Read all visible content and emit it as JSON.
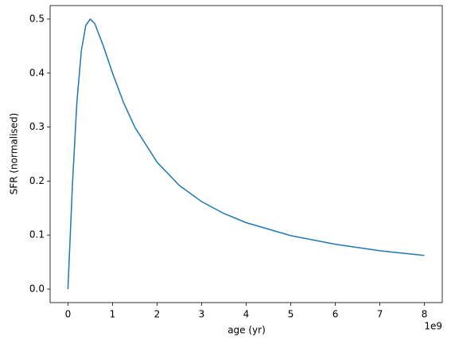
{
  "chart_data": {
    "type": "line",
    "x_label": "age (yr)",
    "y_label": "SFR (normalised)",
    "x_offset_text": "1e9",
    "x": [
      0,
      0.1,
      0.2,
      0.3,
      0.4,
      0.5,
      0.6,
      0.8,
      1,
      1.25,
      1.5,
      2,
      2.5,
      3,
      3.5,
      4,
      5,
      6,
      7,
      8
    ],
    "series": [
      {
        "color": "#1f77b4",
        "values": [
          0,
          0.192,
          0.345,
          0.441,
          0.488,
          0.5,
          0.492,
          0.449,
          0.4,
          0.345,
          0.3,
          0.235,
          0.192,
          0.162,
          0.14,
          0.123,
          0.099,
          0.083,
          0.071,
          0.0623
        ]
      }
    ],
    "xlim": [
      -0.4,
      8.4
    ],
    "ylim": [
      -0.025,
      0.525
    ],
    "xticks": [
      0,
      1,
      2,
      3,
      4,
      5,
      6,
      7,
      8
    ],
    "yticks": [
      {
        "value": 0,
        "label": "0.0"
      },
      {
        "value": 0.1,
        "label": "0.1"
      },
      {
        "value": 0.2,
        "label": "0.2"
      },
      {
        "value": 0.3,
        "label": "0.3"
      },
      {
        "value": 0.4,
        "label": "0.4"
      },
      {
        "value": 0.5,
        "label": "0.5"
      }
    ],
    "grid": false
  }
}
